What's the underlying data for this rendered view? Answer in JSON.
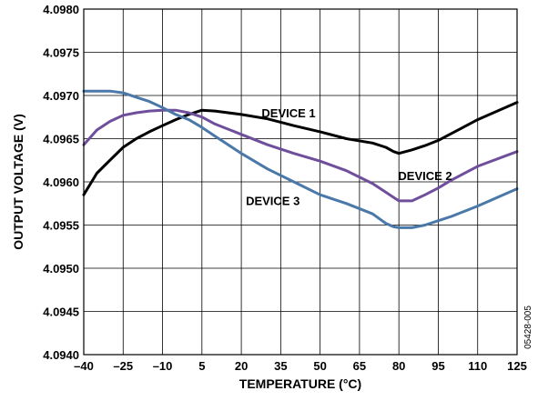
{
  "chart_data": {
    "type": "line",
    "title": "",
    "xlabel": "TEMPERATURE (°C)",
    "ylabel": "OUTPUT VOLTAGE (V)",
    "xlim": [
      -40,
      125
    ],
    "ylim": [
      4.094,
      4.098
    ],
    "grid": true,
    "legend": "none",
    "x_ticks": [
      -40,
      -25,
      -10,
      5,
      20,
      35,
      50,
      65,
      80,
      95,
      110,
      125
    ],
    "x_tick_labels": [
      "–40",
      "–25",
      "–10",
      "5",
      "20",
      "35",
      "50",
      "65",
      "80",
      "95",
      "110",
      "125"
    ],
    "y_ticks": [
      4.094,
      4.0945,
      4.095,
      4.0955,
      4.096,
      4.0965,
      4.097,
      4.0975,
      4.098
    ],
    "y_tick_labels": [
      "4.0940",
      "4.0945",
      "4.0950",
      "4.0955",
      "4.0960",
      "4.0965",
      "4.0970",
      "4.0975",
      "4.0980"
    ],
    "series": [
      {
        "name": "DEVICE 1",
        "color": "#000000",
        "x": [
          -40,
          -35,
          -30,
          -25,
          -20,
          -15,
          -10,
          -5,
          0,
          5,
          10,
          20,
          30,
          40,
          50,
          60,
          70,
          75,
          78,
          80,
          85,
          90,
          95,
          100,
          110,
          125
        ],
        "y": [
          4.09585,
          4.0961,
          4.09625,
          4.0964,
          4.0965,
          4.09658,
          4.09665,
          4.09672,
          4.09678,
          4.09683,
          4.09682,
          4.09678,
          4.09673,
          4.09665,
          4.09658,
          4.0965,
          4.09645,
          4.0964,
          4.09635,
          4.09633,
          4.09637,
          4.09642,
          4.09648,
          4.09656,
          4.09672,
          4.09692
        ]
      },
      {
        "name": "DEVICE 2",
        "color": "#6f4f9c",
        "x": [
          -40,
          -35,
          -30,
          -25,
          -20,
          -15,
          -10,
          -5,
          0,
          5,
          10,
          20,
          30,
          40,
          50,
          60,
          70,
          75,
          78,
          80,
          85,
          90,
          95,
          100,
          110,
          125
        ],
        "y": [
          4.09643,
          4.0966,
          4.0967,
          4.09677,
          4.0968,
          4.09682,
          4.09683,
          4.09683,
          4.0968,
          4.09675,
          4.09667,
          4.09655,
          4.09643,
          4.09633,
          4.09624,
          4.09613,
          4.09598,
          4.09588,
          4.09582,
          4.09578,
          4.09578,
          4.09585,
          4.09593,
          4.09602,
          4.09618,
          4.09635
        ]
      },
      {
        "name": "DEVICE 3",
        "color": "#4a78a8",
        "x": [
          -40,
          -35,
          -30,
          -25,
          -20,
          -15,
          -10,
          -5,
          0,
          5,
          10,
          20,
          30,
          40,
          50,
          60,
          70,
          75,
          78,
          80,
          85,
          90,
          95,
          100,
          110,
          125
        ],
        "y": [
          4.09705,
          4.09705,
          4.09705,
          4.09703,
          4.09698,
          4.09693,
          4.09686,
          4.09678,
          4.09672,
          4.09663,
          4.09653,
          4.09633,
          4.09615,
          4.096,
          4.09585,
          4.09575,
          4.09563,
          4.09552,
          4.09548,
          4.09547,
          4.09547,
          4.0955,
          4.09555,
          4.0956,
          4.09572,
          4.09592
        ]
      }
    ],
    "annotations": [
      {
        "text": "DEVICE 1",
        "x": 38,
        "y": 4.09675
      },
      {
        "text": "DEVICE 2",
        "x": 90,
        "y": 4.09602
      },
      {
        "text": "DEVICE 3",
        "x": 32,
        "y": 4.09573
      }
    ]
  },
  "figure_id": "05428-005"
}
